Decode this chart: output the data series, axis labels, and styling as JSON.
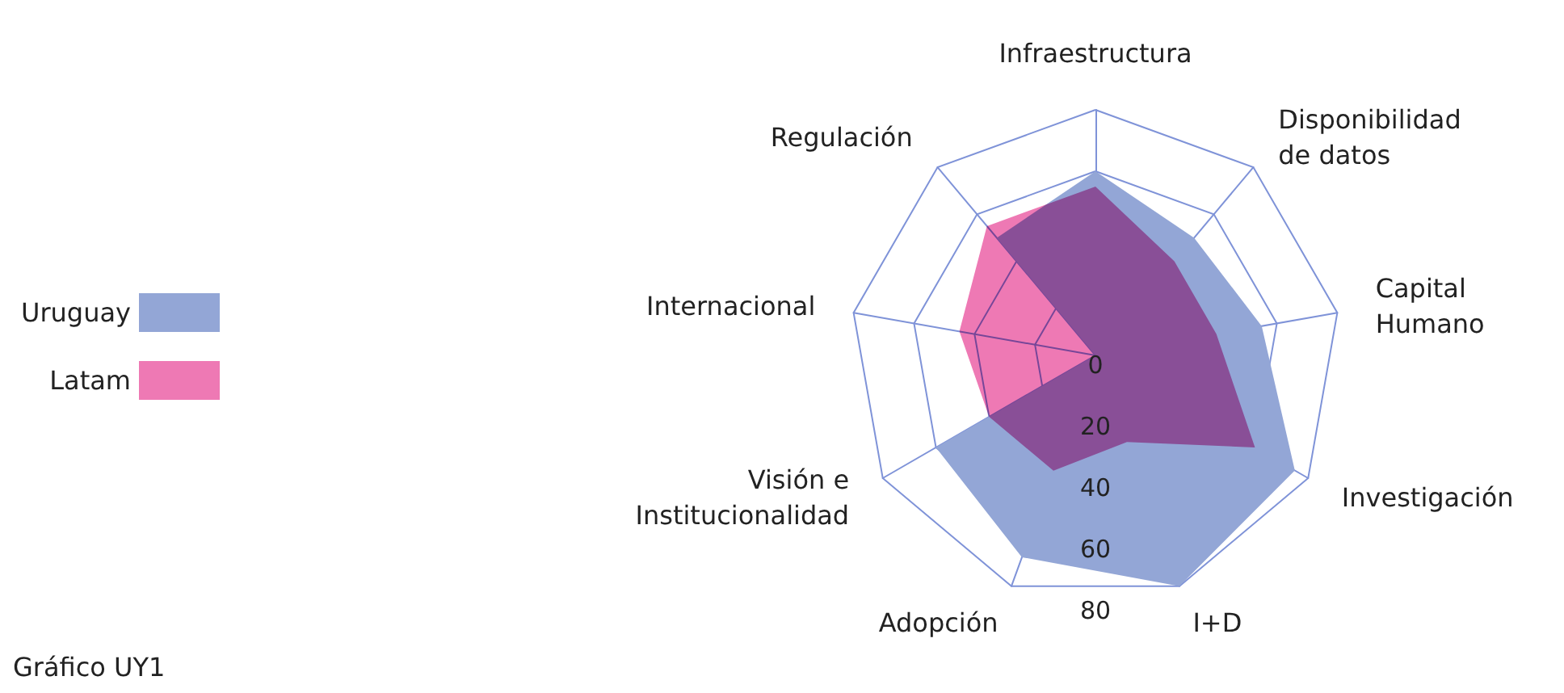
{
  "chart_data": {
    "type": "radar",
    "categories": [
      "Infraestructura",
      "Disponibilidad de datos",
      "Capital Humano",
      "Investigación",
      "I+D",
      "Adopción",
      "Visión e Institucionalidad",
      "Internacional",
      "Regulación"
    ],
    "series": [
      {
        "name": "Uruguay",
        "color": "#93a6d6",
        "values": [
          60,
          50,
          55,
          75,
          80,
          70,
          60,
          0,
          50
        ]
      },
      {
        "name": "Latam",
        "color": "#ee79b4",
        "values": [
          55,
          40,
          40,
          60,
          30,
          40,
          40,
          45,
          55
        ]
      }
    ],
    "ylim": [
      0,
      80
    ],
    "yticks": [
      0,
      20,
      40,
      60,
      80
    ],
    "grid": true,
    "legend": "left",
    "annotations": [
      "Gráfico UY1"
    ]
  }
}
